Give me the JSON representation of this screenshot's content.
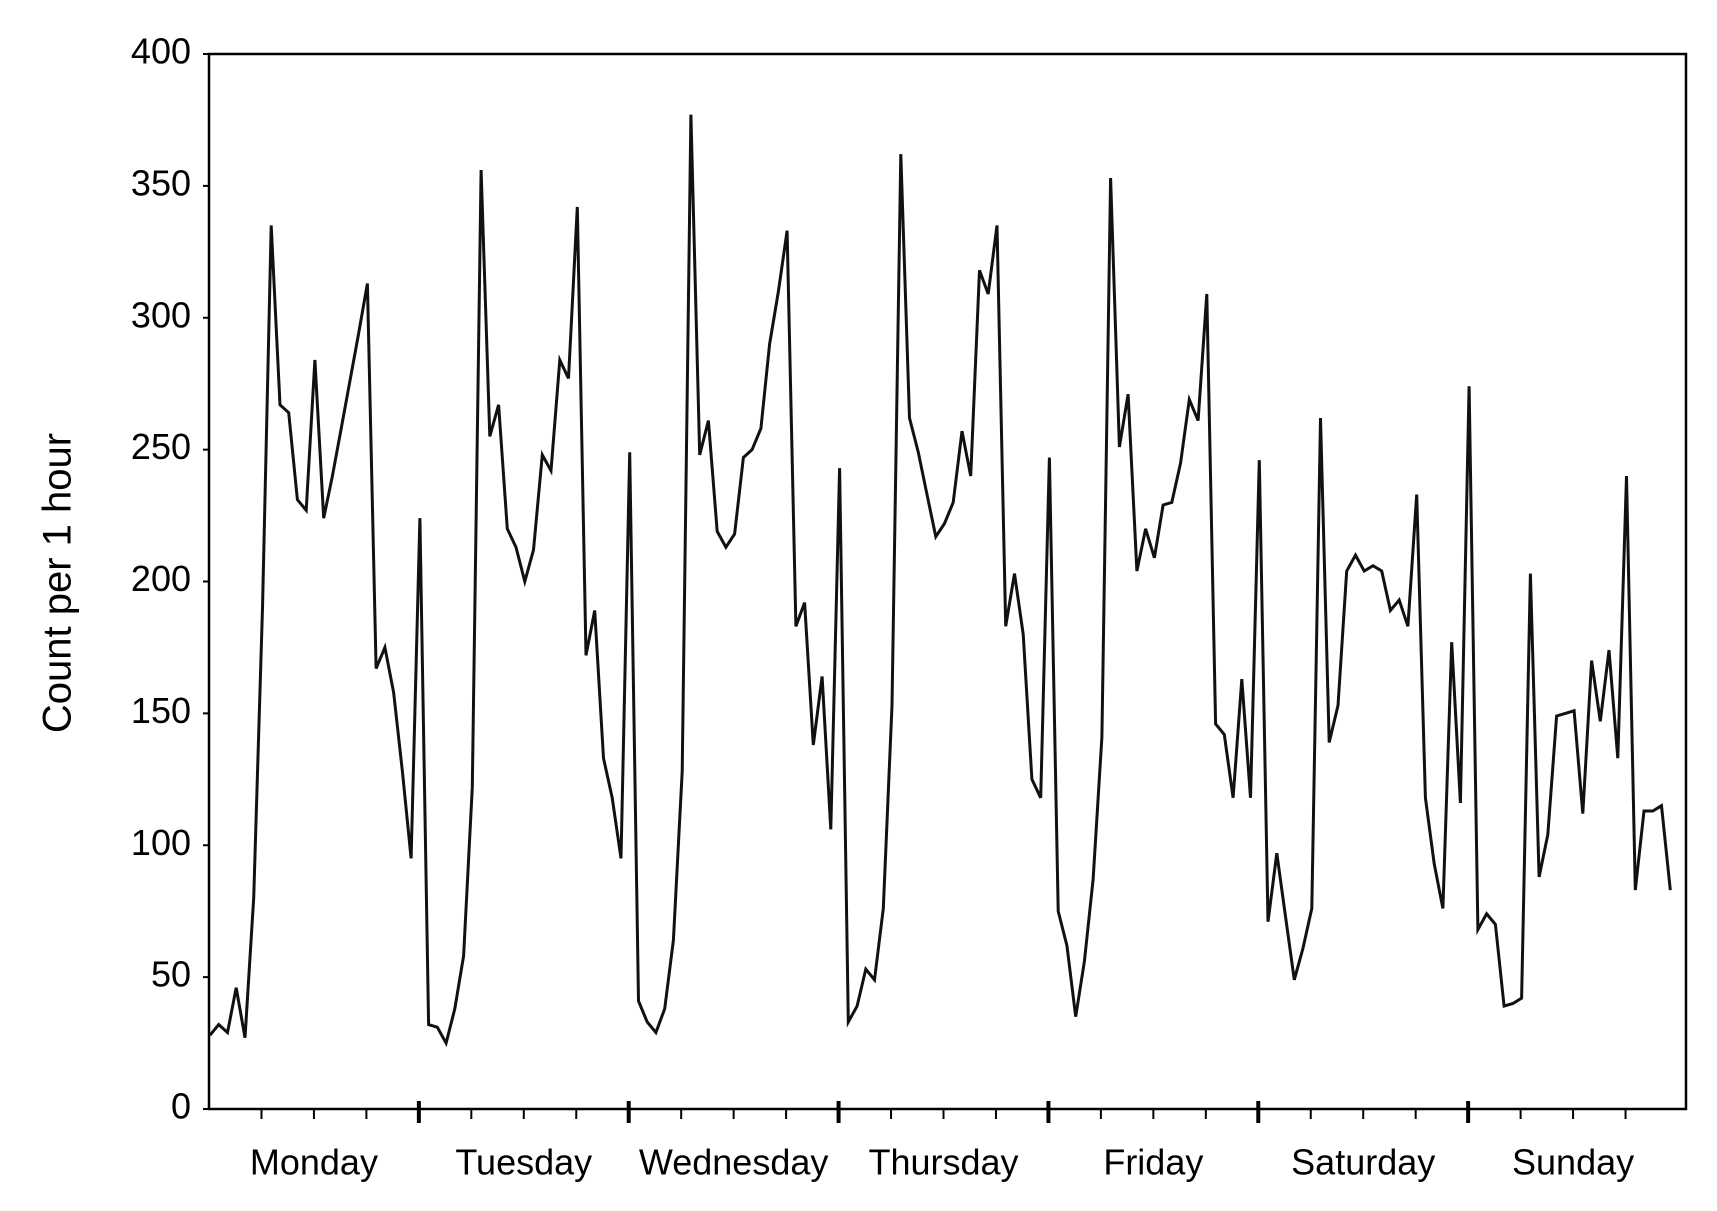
{
  "chart_data": {
    "type": "line",
    "y_label": "Count per 1 hour",
    "color": "#111111",
    "categories": [
      "Monday",
      "Tuesday",
      "Wednesday",
      "Thursday",
      "Friday",
      "Saturday",
      "Sunday"
    ],
    "values": [
      [
        28,
        32,
        29,
        46,
        27,
        80,
        190,
        335,
        267,
        264,
        231,
        227,
        284,
        224,
        240,
        258,
        276,
        294,
        313,
        167,
        175,
        158,
        128,
        95
      ],
      [
        224,
        32,
        31,
        25,
        38,
        58,
        122,
        356,
        255,
        267,
        220,
        213,
        200,
        212,
        248,
        242,
        284,
        277,
        342,
        172,
        189,
        133,
        118,
        95
      ],
      [
        249,
        41,
        33,
        29,
        38,
        64,
        128,
        377,
        248,
        261,
        219,
        213,
        218,
        247,
        250,
        258,
        290,
        310,
        333,
        183,
        192,
        138,
        164,
        106
      ],
      [
        243,
        33,
        39,
        53,
        49,
        76,
        153,
        362,
        262,
        249,
        233,
        217,
        222,
        230,
        257,
        240,
        318,
        309,
        335,
        183,
        203,
        180,
        125,
        118
      ],
      [
        247,
        75,
        62,
        35,
        56,
        87,
        141,
        353,
        251,
        271,
        204,
        220,
        209,
        229,
        230,
        245,
        269,
        261,
        309,
        146,
        142,
        118,
        163,
        118
      ],
      [
        246,
        71,
        97,
        73,
        49,
        61,
        76,
        262,
        139,
        153,
        204,
        210,
        204,
        206,
        204,
        189,
        193,
        183,
        233,
        118,
        93,
        76,
        177,
        116
      ],
      [
        274,
        68,
        74,
        70,
        39,
        40,
        42,
        203,
        88,
        104,
        149,
        150,
        151,
        112,
        170,
        147,
        174,
        133,
        240,
        83,
        113,
        113,
        115,
        83
      ]
    ],
    "ylim": [
      0,
      400
    ],
    "yticks": [
      0,
      50,
      100,
      150,
      200,
      250,
      300,
      350,
      400
    ]
  }
}
